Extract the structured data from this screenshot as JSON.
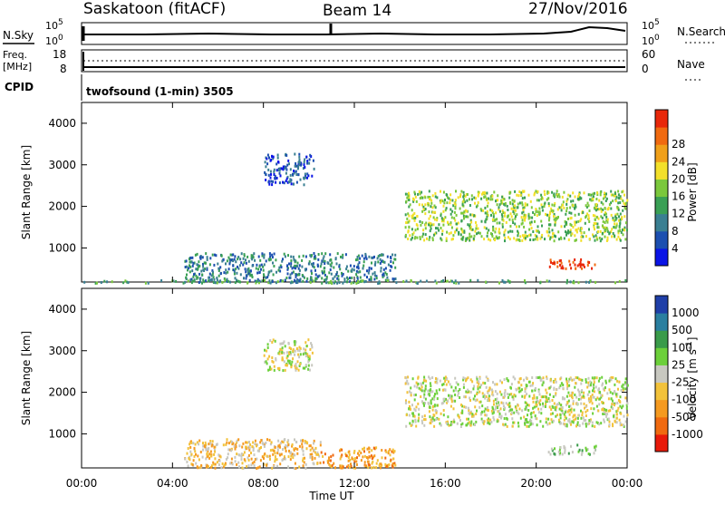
{
  "header": {
    "station": "Saskatoon (fitACF)",
    "beam": "Beam 14",
    "date": "27/Nov/2016"
  },
  "top_panels": {
    "nsky_label": "N.Sky",
    "nsky_ticks": [
      "10^5",
      "10^0"
    ],
    "nsearch_label": "N.Search",
    "nsearch_ticks": [
      "10^5",
      "10^0"
    ],
    "freq_label": "Freq.",
    "freq_unit": "[MHz]",
    "freq_ticks": [
      "18",
      "8"
    ],
    "nave_label": "Nave",
    "nave_ticks": [
      "60",
      "0"
    ],
    "cpid_label": "CPID",
    "cpid_value": "twofsound (1-min) 3505"
  },
  "chart_data": [
    {
      "type": "heatmap",
      "name": "power",
      "ylabel": "Slant Range [km]",
      "ylim": [
        180,
        4500
      ],
      "y_ticks": [
        1000,
        2000,
        3000,
        4000
      ],
      "xlim_hours": [
        0,
        24
      ],
      "colorbar": {
        "label": "Power [dB]",
        "ticks": [
          "4",
          "8",
          "12",
          "16",
          "20",
          "24",
          "28"
        ],
        "colors": [
          "#0a14e6",
          "#1c4fb0",
          "#3a7f92",
          "#3aa055",
          "#7bc83c",
          "#f3e02a",
          "#f0a01a",
          "#f06a10",
          "#e8280a"
        ]
      },
      "regions": [
        {
          "t0": 8.0,
          "t1": 10.2,
          "r0": 2550,
          "r1": 3300,
          "level": 1
        },
        {
          "t0": 14.2,
          "t1": 24.0,
          "r0": 1200,
          "r1": 2400,
          "level": 4
        },
        {
          "t0": 20.5,
          "t1": 22.6,
          "r0": 530,
          "r1": 760,
          "level": 8
        },
        {
          "t0": 4.5,
          "t1": 13.8,
          "r0": 200,
          "r1": 900,
          "level": 2
        },
        {
          "t0": 0.0,
          "t1": 24.0,
          "r0": 180,
          "r1": 250,
          "level": 3
        }
      ]
    },
    {
      "type": "heatmap",
      "name": "velocity",
      "ylabel": "Slant Range [km]",
      "ylim": [
        180,
        4500
      ],
      "y_ticks": [
        1000,
        2000,
        3000,
        4000
      ],
      "xlim_hours": [
        0,
        24
      ],
      "x_ticks": [
        "00:00",
        "04:00",
        "08:00",
        "12:00",
        "16:00",
        "20:00",
        "00:00"
      ],
      "xlabel": "Time UT",
      "colorbar": {
        "label": "Velocity [m s^-1]",
        "ticks": [
          "1000",
          "500",
          "100",
          "25",
          "-25",
          "-100",
          "-500",
          "-1000"
        ],
        "colors": [
          "#1f3fa8",
          "#2a7fa0",
          "#3a9b4a",
          "#6cd03a",
          "#c8c8c0",
          "#f2c23a",
          "#f59a20",
          "#f06a10",
          "#e81a0a"
        ]
      },
      "regions": [
        {
          "t0": 8.0,
          "t1": 10.2,
          "r0": 2550,
          "r1": 3300,
          "level": 4
        },
        {
          "t0": 14.2,
          "t1": 24.0,
          "r0": 1200,
          "r1": 2400,
          "level": 4
        },
        {
          "t0": 20.5,
          "t1": 22.6,
          "r0": 530,
          "r1": 760,
          "level": 3
        },
        {
          "t0": 10.5,
          "t1": 13.8,
          "r0": 200,
          "r1": 700,
          "level": 6
        },
        {
          "t0": 4.5,
          "t1": 10.5,
          "r0": 200,
          "r1": 900,
          "level": 5
        }
      ]
    }
  ]
}
